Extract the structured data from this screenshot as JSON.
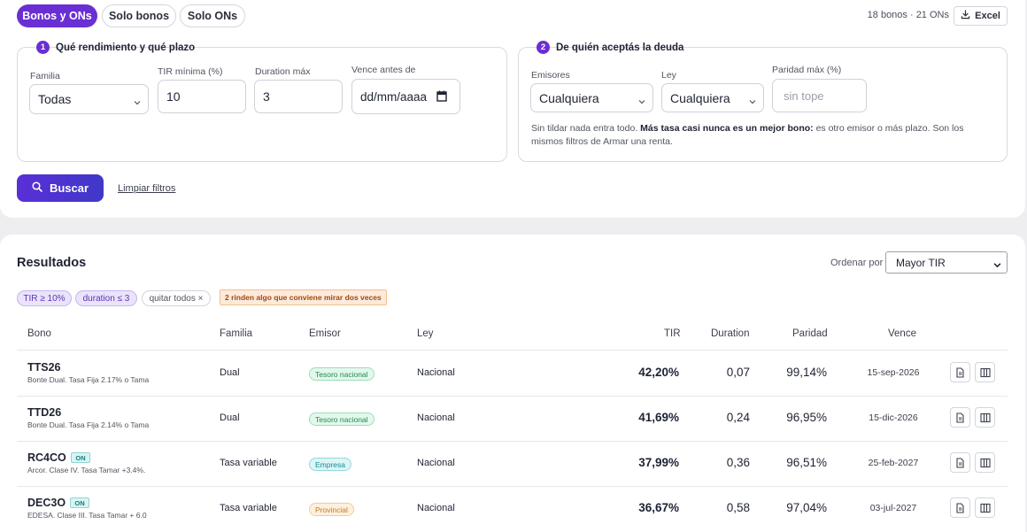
{
  "tabs": [
    {
      "label": "Bonos y ONs",
      "active": true
    },
    {
      "label": "Solo bonos",
      "active": false
    },
    {
      "label": "Solo ONs",
      "active": false
    }
  ],
  "counts": "18 bonos · 21 ONs",
  "excel_label": "Excel",
  "panel1": {
    "step": "1",
    "title": "Qué rendimiento y qué plazo",
    "familia_label": "Familia",
    "familia_value": "Todas",
    "tir_label": "TIR mínima (%)",
    "tir_value": "10",
    "duration_label": "Duration máx",
    "duration_value": "3",
    "vence_label": "Vence antes de",
    "vence_value": "dd/mm/aaaa"
  },
  "panel2": {
    "step": "2",
    "title": "De quién aceptás la deuda",
    "emisores_label": "Emisores",
    "emisores_value": "Cualquiera",
    "ley_label": "Ley",
    "ley_value": "Cualquiera",
    "paridad_label": "Paridad máx (%)",
    "paridad_placeholder": "sin tope",
    "note_pre": "Sin tildar nada entra todo. ",
    "note_bold": "Más tasa casi nunca es un mejor bono:",
    "note_post": " es otro emisor o más plazo. Son los mismos filtros de Armar una renta."
  },
  "buscar_label": "Buscar",
  "limpiar_label": "Limpiar filtros",
  "results": {
    "title": "Resultados",
    "ordenar_label": "Ordenar por",
    "ordenar_value": "Mayor TIR",
    "chips": [
      "TIR ≥ 10%",
      "duration ≤ 3"
    ],
    "clear_chip": "quitar todos ×",
    "warning": "2 rinden algo que conviene mirar dos veces",
    "headers": {
      "bono": "Bono",
      "familia": "Familia",
      "emisor": "Emisor",
      "ley": "Ley",
      "tir": "TIR",
      "duration": "Duration",
      "paridad": "Paridad",
      "vence": "Vence"
    },
    "rows": [
      {
        "ticker": "TTS26",
        "on": "",
        "desc": "Bonte Dual. Tasa Fija 2.17% o Tama",
        "familia": "Dual",
        "emisor": "Tesoro nacional",
        "emisor_type": "tesoro",
        "ley": "Nacional",
        "tir": "42,20%",
        "duration": "0,07",
        "paridad": "99,14%",
        "vence": "15-sep-2026"
      },
      {
        "ticker": "TTD26",
        "on": "",
        "desc": "Bonte Dual. Tasa Fija 2.14% o Tama",
        "familia": "Dual",
        "emisor": "Tesoro nacional",
        "emisor_type": "tesoro",
        "ley": "Nacional",
        "tir": "41,69%",
        "duration": "0,24",
        "paridad": "96,95%",
        "vence": "15-dic-2026"
      },
      {
        "ticker": "RC4CO",
        "on": "ON",
        "desc": "Arcor. Clase IV. Tasa Tamar +3.4%.",
        "familia": "Tasa variable",
        "emisor": "Empresa",
        "emisor_type": "empresa",
        "ley": "Nacional",
        "tir": "37,99%",
        "duration": "0,36",
        "paridad": "96,51%",
        "vence": "25-feb-2027"
      },
      {
        "ticker": "DEC3O",
        "on": "ON",
        "desc": "EDESA. Clase III. Tasa Tamar + 6.0",
        "familia": "Tasa variable",
        "emisor": "Provincial",
        "emisor_type": "provincial",
        "ley": "Nacional",
        "tir": "36,67%",
        "duration": "0,58",
        "paridad": "97,04%",
        "vence": "03-jul-2027"
      }
    ]
  },
  "colors": {
    "accent": "#6a2fd4",
    "tesoro_bg": "#e3f8ec",
    "tesoro_fg": "#1f8a4c",
    "tesoro_border": "#9fdcb8",
    "empresa_bg": "#dcf5f6",
    "empresa_fg": "#168c93",
    "empresa_border": "#94d9dd",
    "provincial_bg": "#fdf0df",
    "provincial_fg": "#c77a1d",
    "provincial_border": "#f1cc98"
  }
}
